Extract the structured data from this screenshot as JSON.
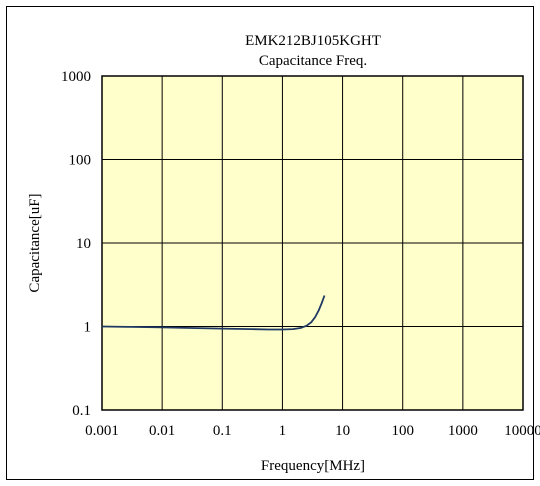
{
  "chart_data": {
    "type": "line",
    "title": "EMK212BJ105KGHT",
    "subtitle": "Capacitance Freq.",
    "xlabel": "Frequency[MHz]",
    "ylabel": "Capacitance[uF]",
    "x_scale": "log",
    "y_scale": "log",
    "xlim": [
      0.001,
      10000
    ],
    "ylim": [
      0.1,
      1000
    ],
    "x_ticks": [
      "0.001",
      "0.01",
      "0.1",
      "1",
      "10",
      "100",
      "1000",
      "10000"
    ],
    "y_ticks": [
      "1000",
      "100",
      "10",
      "1",
      "0.1"
    ],
    "grid": true,
    "colors": {
      "plot_background": "#ffffcc",
      "line": "#1f3864",
      "grid": "#000000"
    },
    "series": [
      {
        "x": [
          0.001,
          0.003,
          0.01,
          0.03,
          0.1,
          0.3,
          0.6,
          1,
          1.5,
          2,
          2.5,
          3,
          3.5,
          4,
          4.5,
          5
        ],
        "y": [
          1.0,
          0.99,
          0.975,
          0.96,
          0.945,
          0.93,
          0.92,
          0.92,
          0.93,
          0.96,
          1.02,
          1.12,
          1.3,
          1.55,
          1.9,
          2.35
        ]
      }
    ]
  }
}
